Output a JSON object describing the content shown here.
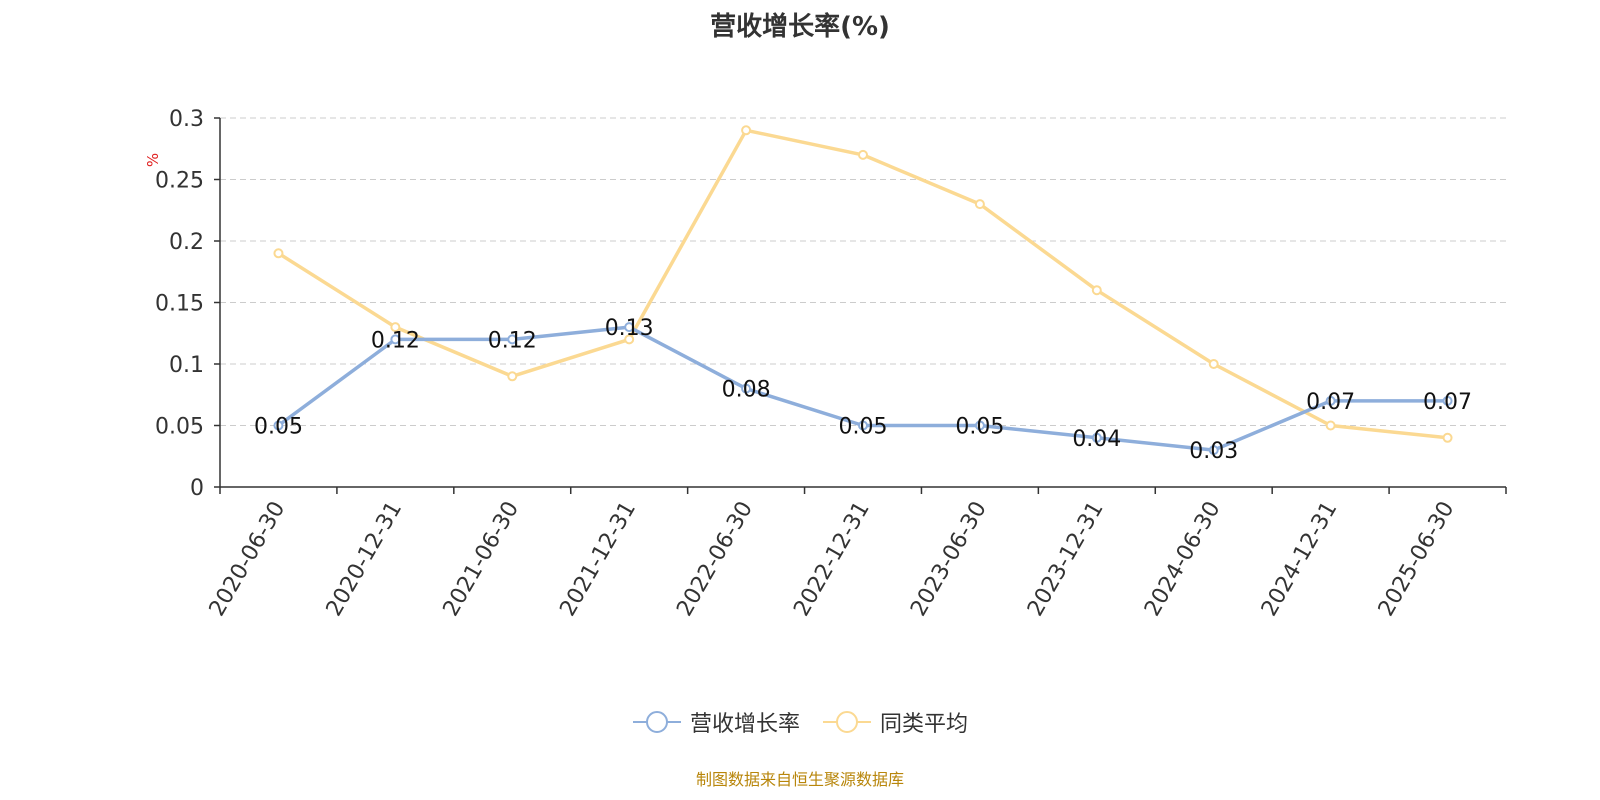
{
  "colors": {
    "series1": "#8eaedb",
    "series2": "#fbd992",
    "grid": "#cccccc",
    "axis": "#333333",
    "unit": "#e02020",
    "footer": "#b8860b"
  },
  "chart_data": {
    "type": "line",
    "title": "营收增长率(%)",
    "ylabel": "%",
    "xlabel": "",
    "ylim": [
      0,
      0.3
    ],
    "yticks": [
      0,
      0.05,
      0.1,
      0.15,
      0.2,
      0.25,
      0.3
    ],
    "grid": true,
    "legend_position": "bottom-center",
    "categories": [
      "2020-06-30",
      "2020-12-31",
      "2021-06-30",
      "2021-12-31",
      "2022-06-30",
      "2022-12-31",
      "2023-06-30",
      "2023-12-31",
      "2024-06-30",
      "2024-12-31",
      "2025-06-30"
    ],
    "series": [
      {
        "name": "营收增长率",
        "values": [
          0.05,
          0.12,
          0.12,
          0.13,
          0.08,
          0.05,
          0.05,
          0.04,
          0.03,
          0.07,
          0.07
        ],
        "data_labels": true
      },
      {
        "name": "同类平均",
        "values": [
          0.19,
          0.13,
          0.09,
          0.12,
          0.29,
          0.27,
          0.23,
          0.16,
          0.1,
          0.05,
          0.04
        ],
        "data_labels": false
      }
    ]
  },
  "footer": "制图数据来自恒生聚源数据库"
}
